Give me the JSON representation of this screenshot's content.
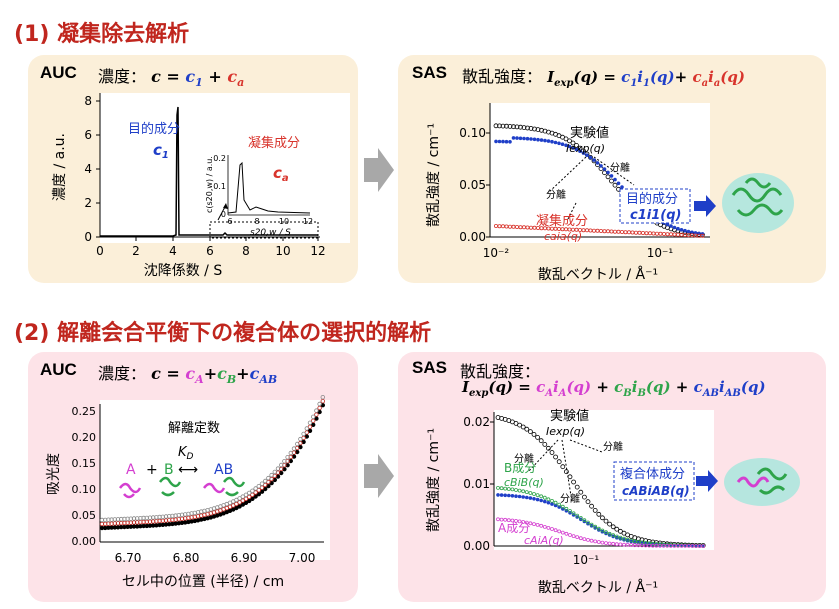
{
  "section1": {
    "title": "(1) 凝集除去解析",
    "auc": {
      "label": "AUC",
      "formula_prefix": "濃度：",
      "formula": "c = c1 + ca",
      "ylabel": "濃度 / a.u.",
      "xlabel": "沈降係数 / S",
      "xticks": [
        "0",
        "2",
        "4",
        "6",
        "8",
        "10",
        "12"
      ],
      "yticks": [
        "0",
        "2",
        "4",
        "6",
        "8"
      ],
      "target_label": "目的成分",
      "target_sym": "c1",
      "agg_label": "凝集成分",
      "agg_sym": "ca",
      "inset_ylabel": "c(s20,w) / a.u.",
      "inset_xlabel": "s20,w / S",
      "inset_xticks": [
        "6",
        "8",
        "10",
        "12"
      ],
      "inset_yticks": [
        "0",
        "0.1",
        "0.2"
      ]
    },
    "sas": {
      "label": "SAS",
      "formula_prefix": "散乱強度：",
      "formula": "Iexp(q) = c1 i1(q) + ca ia(q)",
      "ylabel": "散乱強度 / cm⁻¹",
      "xlabel": "散乱ベクトル / Å⁻¹",
      "yticks": [
        "0.00",
        "0.05",
        "0.10"
      ],
      "xticks": [
        "10⁻²",
        "10⁻¹"
      ],
      "exp_label": "実験値",
      "exp_sym": "Iexp(q)",
      "sep1": "分離",
      "sep2": "分離",
      "target_label": "目的成分",
      "target_sym": "c1i1(q)",
      "agg_label": "凝集成分",
      "agg_sym": "caia(q)"
    }
  },
  "section2": {
    "title": "(2) 解離会合平衡下の複合体の選択的解析",
    "auc": {
      "label": "AUC",
      "formula_prefix": "濃度：",
      "formula": "c = cA + cB + cAB",
      "ylabel": "吸光度",
      "xlabel": "セル中の位置 (半径) / cm",
      "xticks": [
        "6.70",
        "6.80",
        "6.90",
        "7.00"
      ],
      "yticks": [
        "0.00",
        "0.05",
        "0.10",
        "0.15",
        "0.20",
        "0.25"
      ],
      "const_label": "解離定数",
      "kd": "KD",
      "a": "A",
      "plus": "+",
      "b": "B",
      "ab": "AB"
    },
    "sas": {
      "label": "SAS",
      "formula_prefix": "散乱強度：",
      "formula": "Iexp(q) = cA iA(q) + cB iB(q) + cAB iAB(q)",
      "ylabel": "散乱強度 / cm⁻¹",
      "xlabel": "散乱ベクトル / Å⁻¹",
      "yticks": [
        "0.00",
        "0.01",
        "0.02"
      ],
      "xticks": [
        "10⁻¹"
      ],
      "exp_label": "実験値",
      "exp_sym": "Iexp(q)",
      "sep1": "分離",
      "sep2": "分離",
      "sep3": "分離",
      "b_label": "B成分",
      "b_sym": "cBiB(q)",
      "a_label": "A成分",
      "a_sym": "cAiA(q)",
      "complex_label": "複合体成分",
      "complex_sym": "cABiAB(q)"
    }
  },
  "colors": {
    "title_red": "#c0261e",
    "blue": "#1f3fc8",
    "red": "#d8342c",
    "green": "#2ea44a",
    "magenta": "#d43fd0",
    "panel1": "#fbefd9",
    "panel2": "#fde3e8"
  }
}
